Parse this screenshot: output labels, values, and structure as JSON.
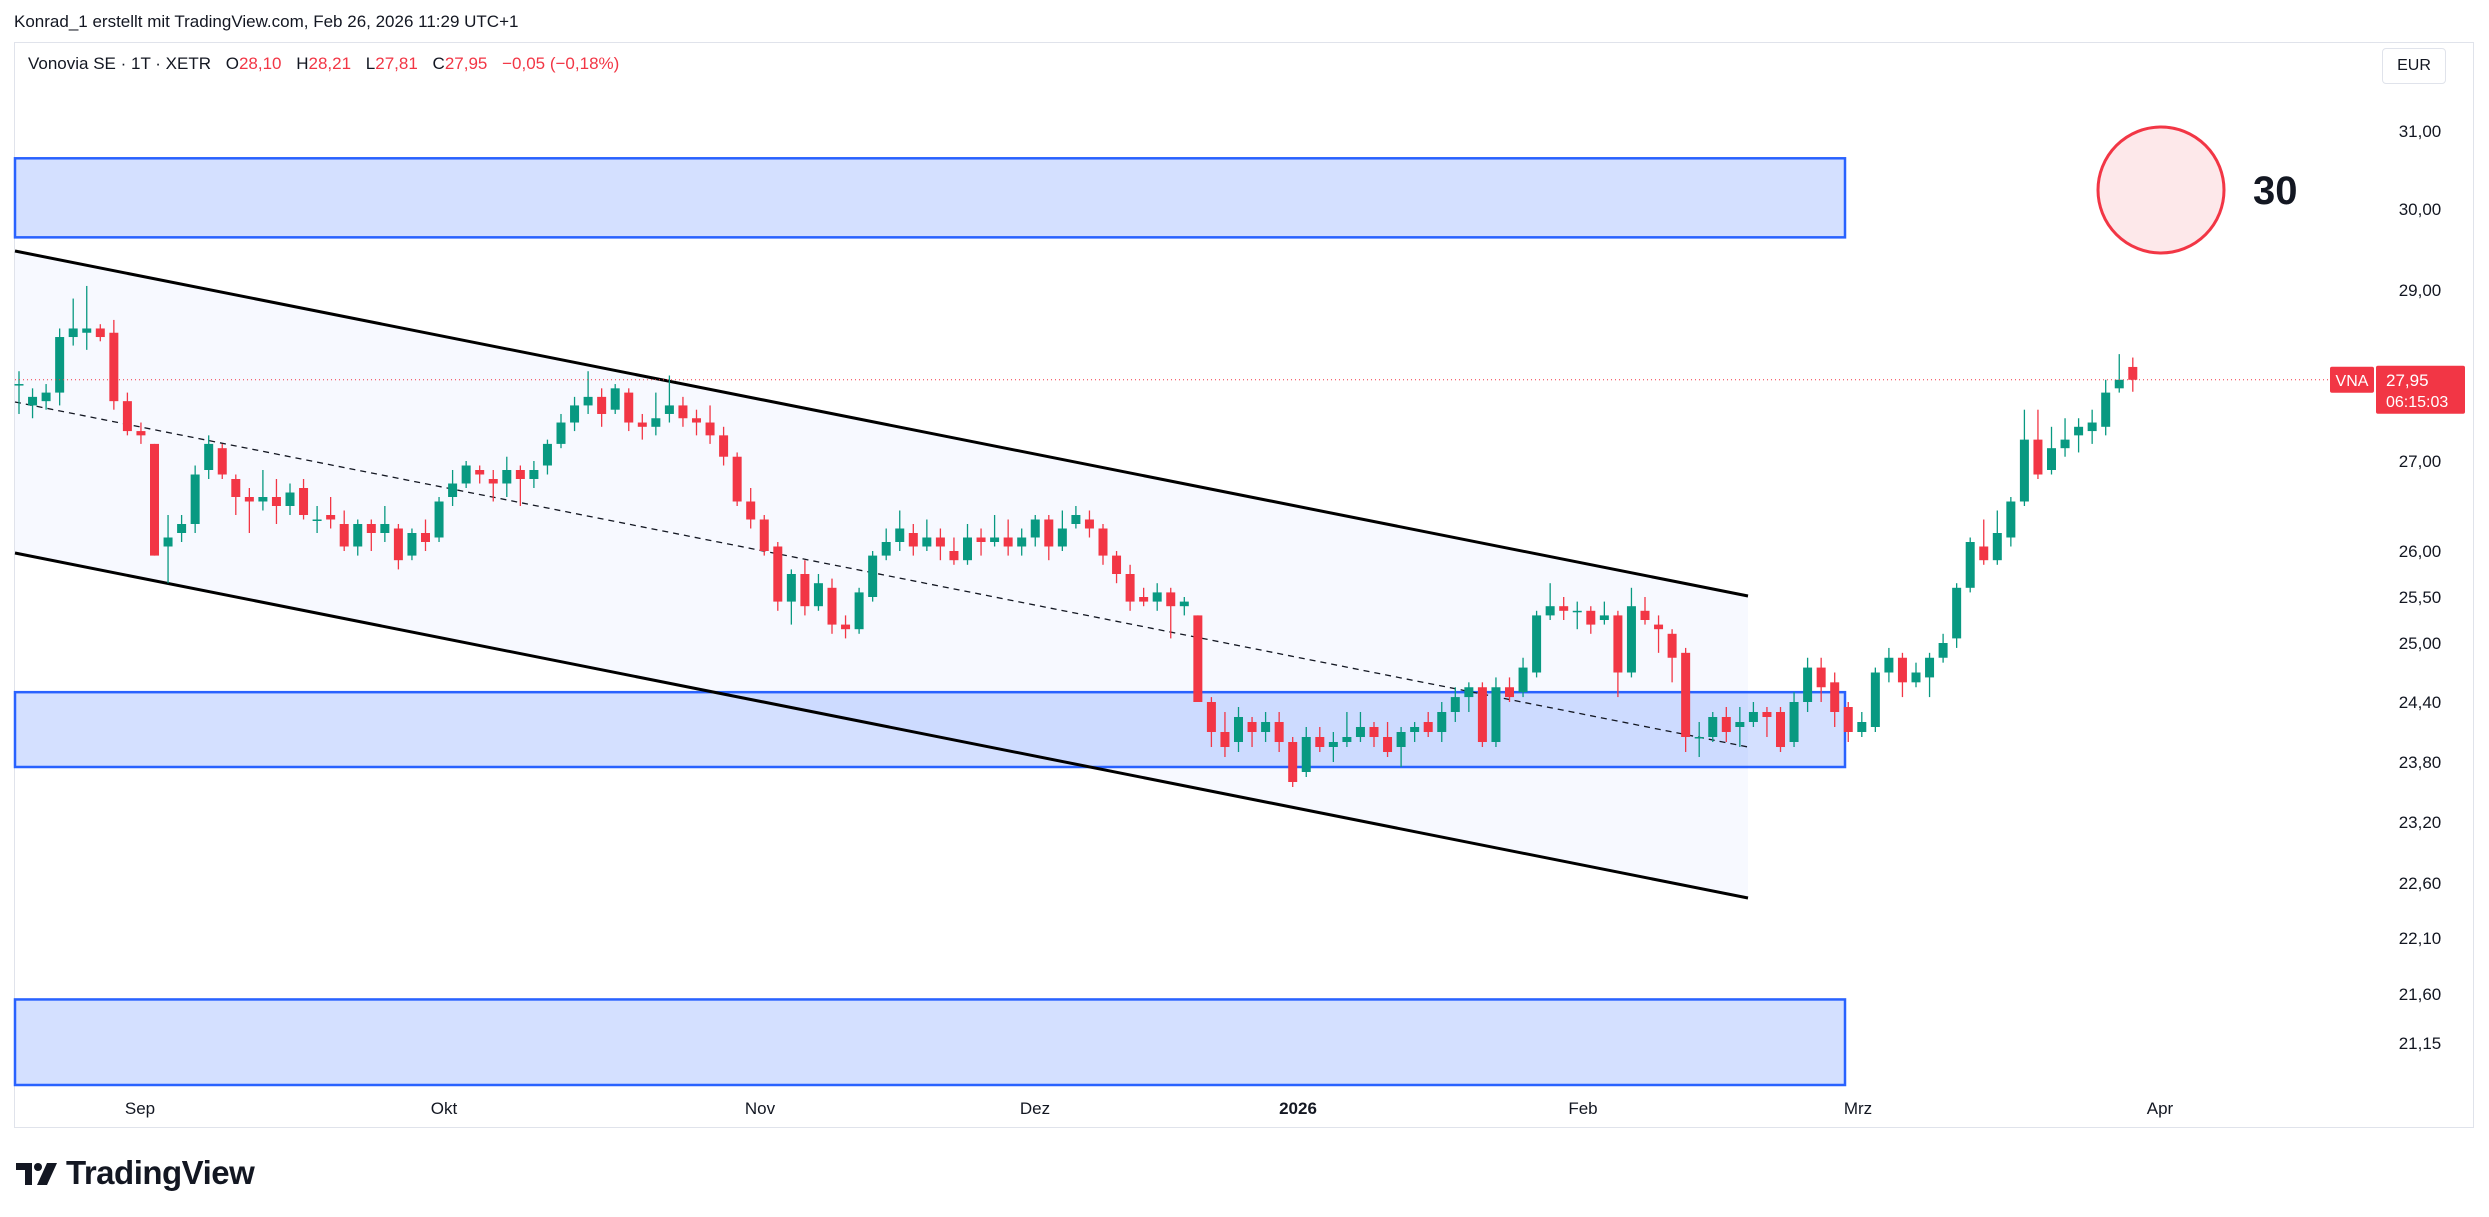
{
  "caption": "Konrad_1 erstellt mit TradingView.com, Feb 26, 2026 11:29 UTC+1",
  "legend": {
    "symbol": "Vonovia SE · 1T · XETR",
    "open_label": "O",
    "open": "28,10",
    "high_label": "H",
    "high": "28,21",
    "low_label": "L",
    "low": "27,81",
    "close_label": "C",
    "close": "27,95",
    "change": "−0,05 (−0,18%)"
  },
  "currency": "EUR",
  "annotation_number": "30",
  "brand": "TradingView",
  "colors": {
    "up": "#089981",
    "down": "#f23645",
    "zone": "#2962ff",
    "line": "#000000"
  },
  "chart_data": {
    "type": "candlestick",
    "title": "Vonovia SE · 1T · XETR",
    "ylabel": "EUR",
    "y_ticks": [
      "31,00",
      "30,00",
      "29,00",
      "27,00",
      "26,00",
      "25,50",
      "25,00",
      "24,40",
      "23,80",
      "23,20",
      "22,60",
      "22,10",
      "21,60",
      "21,15"
    ],
    "x_ticks": [
      {
        "label": "Sep",
        "bold": false
      },
      {
        "label": "Okt",
        "bold": false
      },
      {
        "label": "Nov",
        "bold": false
      },
      {
        "label": "Dez",
        "bold": false
      },
      {
        "label": "2026",
        "bold": true
      },
      {
        "label": "Feb",
        "bold": false
      },
      {
        "label": "Mrz",
        "bold": false
      },
      {
        "label": "Apr",
        "bold": false
      }
    ],
    "last_price": {
      "symbol_tag": "VNA",
      "price": "27,95",
      "countdown": "06:15:03",
      "value": 27.95
    },
    "zones": [
      {
        "name": "resistance-zone",
        "low": 29.65,
        "high": 30.65
      },
      {
        "name": "support-zone",
        "low": 23.75,
        "high": 24.5
      },
      {
        "name": "lower-zone",
        "low": 20.6,
        "high": 21.55
      }
    ],
    "candles": [
      [
        27.9,
        27.9,
        28.05,
        27.55
      ],
      [
        27.65,
        27.75,
        27.85,
        27.5
      ],
      [
        27.7,
        27.8,
        27.9,
        27.6
      ],
      [
        27.8,
        28.45,
        28.55,
        27.65
      ],
      [
        28.45,
        28.55,
        28.9,
        28.35
      ],
      [
        28.5,
        28.55,
        29.05,
        28.3
      ],
      [
        28.55,
        28.45,
        28.6,
        28.4
      ],
      [
        28.5,
        27.7,
        28.65,
        27.6
      ],
      [
        27.7,
        27.35,
        27.8,
        27.3
      ],
      [
        27.35,
        27.3,
        27.45,
        27.2
      ],
      [
        27.2,
        25.95,
        27.2,
        25.95
      ],
      [
        26.05,
        26.15,
        26.4,
        25.65
      ],
      [
        26.2,
        26.3,
        26.4,
        26.1
      ],
      [
        26.3,
        26.85,
        26.95,
        26.2
      ],
      [
        26.9,
        27.2,
        27.3,
        26.8
      ],
      [
        27.15,
        26.85,
        27.2,
        26.8
      ],
      [
        26.8,
        26.6,
        26.85,
        26.4
      ],
      [
        26.6,
        26.55,
        26.7,
        26.2
      ],
      [
        26.55,
        26.6,
        26.9,
        26.45
      ],
      [
        26.6,
        26.5,
        26.8,
        26.3
      ],
      [
        26.5,
        26.65,
        26.75,
        26.4
      ],
      [
        26.7,
        26.4,
        26.8,
        26.35
      ],
      [
        26.35,
        26.35,
        26.5,
        26.2
      ],
      [
        26.4,
        26.35,
        26.6,
        26.25
      ],
      [
        26.3,
        26.05,
        26.45,
        26.0
      ],
      [
        26.05,
        26.3,
        26.35,
        25.95
      ],
      [
        26.3,
        26.2,
        26.35,
        26.0
      ],
      [
        26.2,
        26.3,
        26.5,
        26.1
      ],
      [
        26.25,
        25.9,
        26.3,
        25.8
      ],
      [
        25.95,
        26.2,
        26.25,
        25.9
      ],
      [
        26.2,
        26.1,
        26.35,
        26.0
      ],
      [
        26.15,
        26.55,
        26.6,
        26.1
      ],
      [
        26.6,
        26.75,
        26.9,
        26.5
      ],
      [
        26.75,
        26.95,
        27.0,
        26.7
      ],
      [
        26.9,
        26.85,
        26.95,
        26.75
      ],
      [
        26.8,
        26.75,
        26.9,
        26.55
      ],
      [
        26.75,
        26.9,
        27.05,
        26.6
      ],
      [
        26.9,
        26.8,
        26.95,
        26.5
      ],
      [
        26.8,
        26.9,
        27.0,
        26.7
      ],
      [
        26.95,
        27.2,
        27.25,
        26.85
      ],
      [
        27.2,
        27.45,
        27.55,
        27.15
      ],
      [
        27.45,
        27.65,
        27.75,
        27.35
      ],
      [
        27.65,
        27.75,
        28.05,
        27.55
      ],
      [
        27.75,
        27.55,
        27.85,
        27.4
      ],
      [
        27.6,
        27.85,
        27.9,
        27.55
      ],
      [
        27.8,
        27.45,
        27.85,
        27.35
      ],
      [
        27.45,
        27.4,
        27.55,
        27.25
      ],
      [
        27.4,
        27.5,
        27.8,
        27.3
      ],
      [
        27.55,
        27.65,
        28.0,
        27.45
      ],
      [
        27.65,
        27.5,
        27.75,
        27.4
      ],
      [
        27.5,
        27.45,
        27.6,
        27.3
      ],
      [
        27.45,
        27.3,
        27.65,
        27.2
      ],
      [
        27.3,
        27.05,
        27.4,
        26.95
      ],
      [
        27.05,
        26.55,
        27.1,
        26.5
      ],
      [
        26.55,
        26.35,
        26.7,
        26.25
      ],
      [
        26.35,
        26.0,
        26.4,
        25.95
      ],
      [
        26.05,
        25.45,
        26.1,
        25.35
      ],
      [
        25.45,
        25.75,
        25.8,
        25.2
      ],
      [
        25.75,
        25.4,
        25.9,
        25.3
      ],
      [
        25.4,
        25.65,
        25.75,
        25.35
      ],
      [
        25.6,
        25.2,
        25.7,
        25.1
      ],
      [
        25.2,
        25.15,
        25.3,
        25.05
      ],
      [
        25.15,
        25.55,
        25.6,
        25.1
      ],
      [
        25.5,
        25.95,
        26.0,
        25.45
      ],
      [
        25.95,
        26.1,
        26.25,
        25.9
      ],
      [
        26.1,
        26.25,
        26.45,
        26.0
      ],
      [
        26.2,
        26.05,
        26.3,
        25.95
      ],
      [
        26.05,
        26.15,
        26.35,
        26.0
      ],
      [
        26.15,
        26.05,
        26.25,
        25.9
      ],
      [
        26.0,
        25.9,
        26.15,
        25.85
      ],
      [
        25.9,
        26.15,
        26.3,
        25.85
      ],
      [
        26.15,
        26.1,
        26.25,
        25.95
      ],
      [
        26.1,
        26.15,
        26.4,
        26.05
      ],
      [
        26.15,
        26.05,
        26.35,
        25.95
      ],
      [
        26.05,
        26.15,
        26.25,
        25.95
      ],
      [
        26.15,
        26.35,
        26.4,
        26.05
      ],
      [
        26.35,
        26.05,
        26.4,
        25.9
      ],
      [
        26.05,
        26.25,
        26.45,
        26.0
      ],
      [
        26.3,
        26.4,
        26.5,
        26.25
      ],
      [
        26.35,
        26.25,
        26.45,
        26.15
      ],
      [
        26.25,
        25.95,
        26.3,
        25.85
      ],
      [
        25.95,
        25.75,
        26.0,
        25.65
      ],
      [
        25.75,
        25.45,
        25.85,
        25.35
      ],
      [
        25.5,
        25.45,
        25.6,
        25.4
      ],
      [
        25.45,
        25.55,
        25.65,
        25.35
      ],
      [
        25.55,
        25.4,
        25.6,
        25.05
      ],
      [
        25.4,
        25.45,
        25.5,
        25.3
      ],
      [
        25.3,
        24.4,
        25.3,
        24.4
      ],
      [
        24.4,
        24.1,
        24.45,
        23.95
      ],
      [
        24.1,
        23.95,
        24.3,
        23.85
      ],
      [
        24.0,
        24.25,
        24.35,
        23.9
      ],
      [
        24.2,
        24.1,
        24.25,
        23.95
      ],
      [
        24.1,
        24.2,
        24.3,
        24.0
      ],
      [
        24.2,
        24.0,
        24.3,
        23.9
      ],
      [
        24.0,
        23.6,
        24.05,
        23.55
      ],
      [
        23.7,
        24.05,
        24.15,
        23.65
      ],
      [
        24.05,
        23.95,
        24.15,
        23.9
      ],
      [
        23.95,
        24.0,
        24.1,
        23.8
      ],
      [
        24.0,
        24.05,
        24.3,
        23.95
      ],
      [
        24.05,
        24.15,
        24.3,
        24.0
      ],
      [
        24.15,
        24.05,
        24.2,
        23.95
      ],
      [
        24.05,
        23.9,
        24.2,
        23.85
      ],
      [
        23.95,
        24.1,
        24.15,
        23.75
      ],
      [
        24.1,
        24.15,
        24.2,
        24.0
      ],
      [
        24.2,
        24.1,
        24.3,
        24.05
      ],
      [
        24.1,
        24.3,
        24.4,
        24.0
      ],
      [
        24.3,
        24.45,
        24.55,
        24.2
      ],
      [
        24.45,
        24.55,
        24.6,
        24.3
      ],
      [
        24.55,
        24.0,
        24.6,
        23.95
      ],
      [
        24.0,
        24.55,
        24.65,
        23.95
      ],
      [
        24.55,
        24.45,
        24.65,
        24.4
      ],
      [
        24.5,
        24.75,
        24.85,
        24.45
      ],
      [
        24.7,
        25.3,
        25.35,
        24.65
      ],
      [
        25.3,
        25.4,
        25.65,
        25.25
      ],
      [
        25.4,
        25.35,
        25.5,
        25.25
      ],
      [
        25.35,
        25.35,
        25.45,
        25.15
      ],
      [
        25.35,
        25.2,
        25.4,
        25.1
      ],
      [
        25.25,
        25.3,
        25.45,
        25.2
      ],
      [
        25.3,
        24.7,
        25.35,
        24.45
      ],
      [
        24.7,
        25.4,
        25.6,
        24.65
      ],
      [
        25.35,
        25.25,
        25.5,
        25.2
      ],
      [
        25.2,
        25.15,
        25.3,
        24.9
      ],
      [
        25.1,
        24.85,
        25.15,
        24.6
      ],
      [
        24.9,
        24.05,
        24.95,
        23.9
      ],
      [
        24.05,
        24.05,
        24.2,
        23.85
      ],
      [
        24.05,
        24.25,
        24.3,
        24.0
      ],
      [
        24.25,
        24.1,
        24.35,
        24.0
      ],
      [
        24.15,
        24.2,
        24.35,
        23.95
      ],
      [
        24.2,
        24.3,
        24.4,
        24.15
      ],
      [
        24.3,
        24.25,
        24.35,
        24.05
      ],
      [
        24.3,
        23.95,
        24.35,
        23.9
      ],
      [
        24.0,
        24.4,
        24.5,
        23.95
      ],
      [
        24.4,
        24.75,
        24.85,
        24.3
      ],
      [
        24.75,
        24.55,
        24.85,
        24.4
      ],
      [
        24.6,
        24.3,
        24.7,
        24.15
      ],
      [
        24.35,
        24.1,
        24.4,
        24.0
      ],
      [
        24.1,
        24.2,
        24.3,
        24.05
      ],
      [
        24.15,
        24.7,
        24.75,
        24.1
      ],
      [
        24.7,
        24.85,
        24.95,
        24.6
      ],
      [
        24.85,
        24.6,
        24.9,
        24.45
      ],
      [
        24.6,
        24.7,
        24.8,
        24.55
      ],
      [
        24.65,
        24.85,
        24.9,
        24.45
      ],
      [
        24.85,
        25.0,
        25.1,
        24.8
      ],
      [
        25.05,
        25.6,
        25.65,
        24.95
      ],
      [
        25.6,
        26.1,
        26.15,
        25.55
      ],
      [
        26.05,
        25.9,
        26.35,
        25.85
      ],
      [
        25.9,
        26.2,
        26.45,
        25.85
      ],
      [
        26.15,
        26.55,
        26.6,
        26.05
      ],
      [
        26.55,
        27.25,
        27.6,
        26.5
      ],
      [
        27.25,
        26.85,
        27.6,
        26.8
      ],
      [
        26.9,
        27.15,
        27.4,
        26.85
      ],
      [
        27.15,
        27.25,
        27.5,
        27.05
      ],
      [
        27.3,
        27.4,
        27.5,
        27.1
      ],
      [
        27.35,
        27.45,
        27.6,
        27.2
      ],
      [
        27.4,
        27.8,
        27.95,
        27.3
      ],
      [
        27.85,
        27.95,
        28.25,
        27.8
      ],
      [
        28.1,
        27.95,
        28.21,
        27.81
      ]
    ]
  }
}
